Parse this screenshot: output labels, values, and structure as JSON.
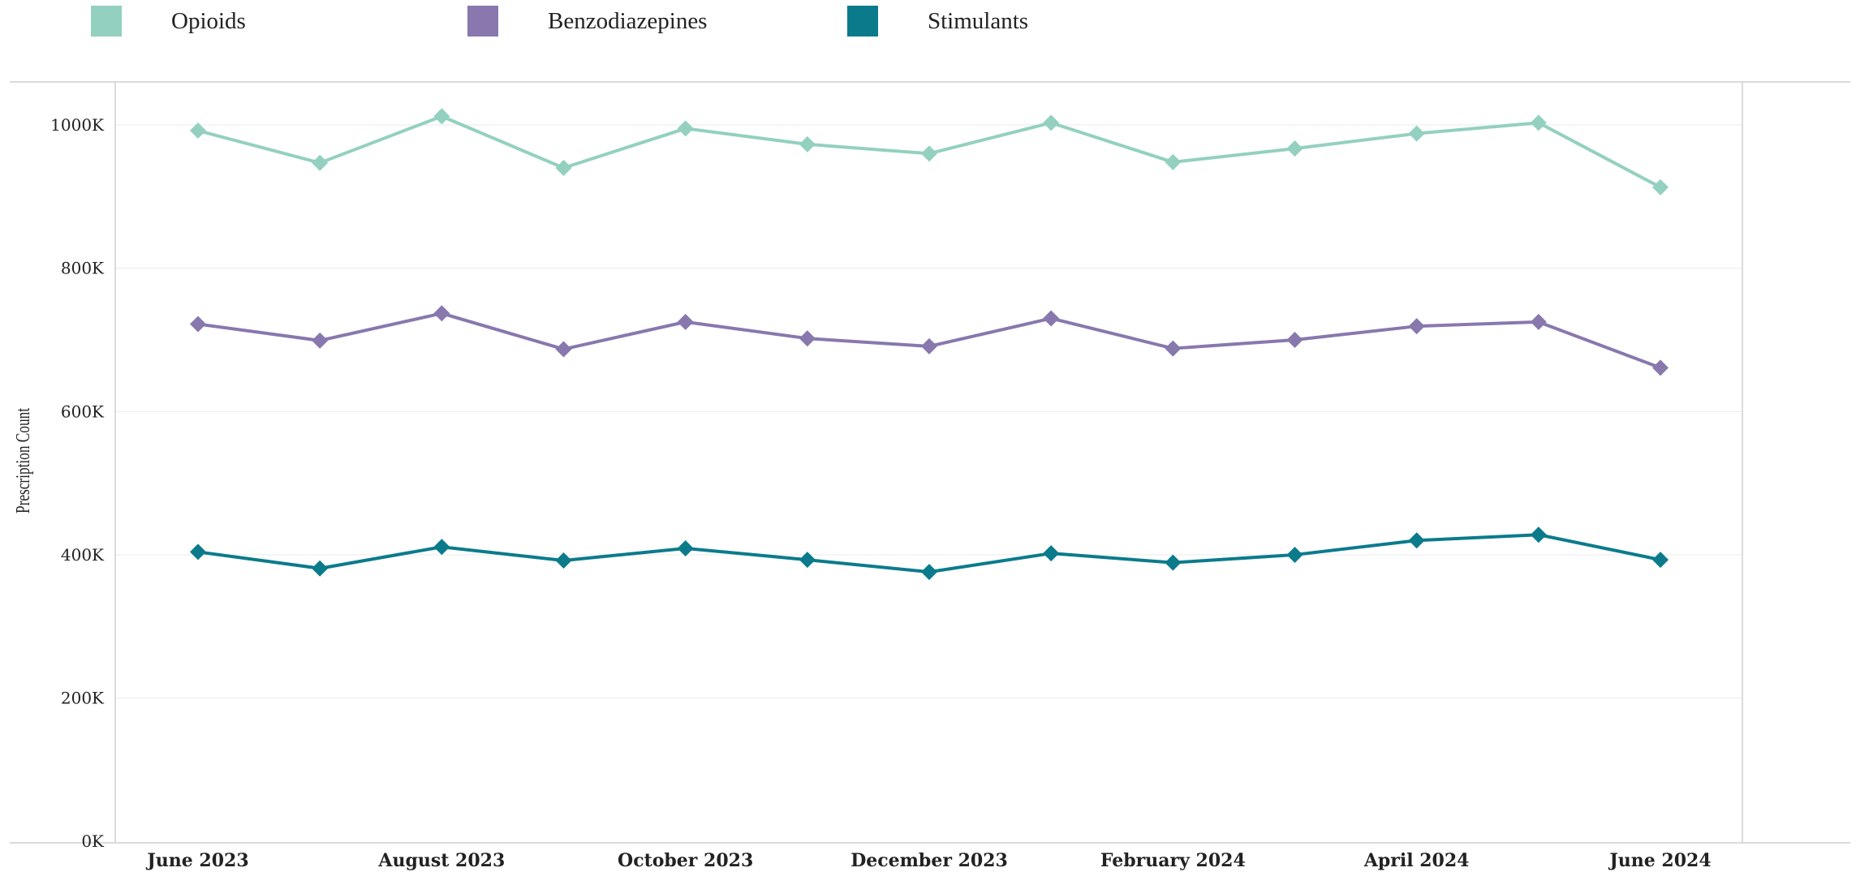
{
  "chart_data": {
    "type": "line",
    "title": "",
    "xlabel": "",
    "ylabel": "Prescription Count",
    "x": [
      "June 2023",
      "July 2023",
      "August 2023",
      "September 2023",
      "October 2023",
      "November 2023",
      "December 2023",
      "January 2024",
      "February 2024",
      "March 2024",
      "April 2024",
      "May 2024",
      "June 2024"
    ],
    "x_tick_labels": [
      {
        "index": 0,
        "label": "June 2023"
      },
      {
        "index": 2,
        "label": "August 2023"
      },
      {
        "index": 4,
        "label": "October 2023"
      },
      {
        "index": 6,
        "label": "December 2023"
      },
      {
        "index": 8,
        "label": "February 2024"
      },
      {
        "index": 10,
        "label": "April 2024"
      },
      {
        "index": 12,
        "label": "June 2024"
      }
    ],
    "y_ticks": [
      {
        "value": 0,
        "label": "0K"
      },
      {
        "value": 200000,
        "label": "200K"
      },
      {
        "value": 400000,
        "label": "400K"
      },
      {
        "value": 600000,
        "label": "600K"
      },
      {
        "value": 800000,
        "label": "800K"
      },
      {
        "value": 1000000,
        "label": "1000K"
      }
    ],
    "ylim": [
      -2000,
      1060000
    ],
    "grid": "horizontal",
    "legend_position": "top-left",
    "series": [
      {
        "name": "Opioids",
        "color": "#93d0c0",
        "values": [
          992000,
          947000,
          1012000,
          940000,
          995000,
          973000,
          960000,
          1003000,
          948000,
          967000,
          988000,
          1003000,
          913000
        ]
      },
      {
        "name": "Benzodiazepines",
        "color": "#8878ae",
        "values": [
          722000,
          699000,
          737000,
          687000,
          725000,
          702000,
          691000,
          730000,
          688000,
          700000,
          719000,
          725000,
          661000
        ]
      },
      {
        "name": "Stimulants",
        "color": "#0b7b8c",
        "values": [
          404000,
          381000,
          411000,
          392000,
          409000,
          393000,
          376000,
          402000,
          389000,
          400000,
          420000,
          428000,
          393000
        ]
      }
    ]
  }
}
